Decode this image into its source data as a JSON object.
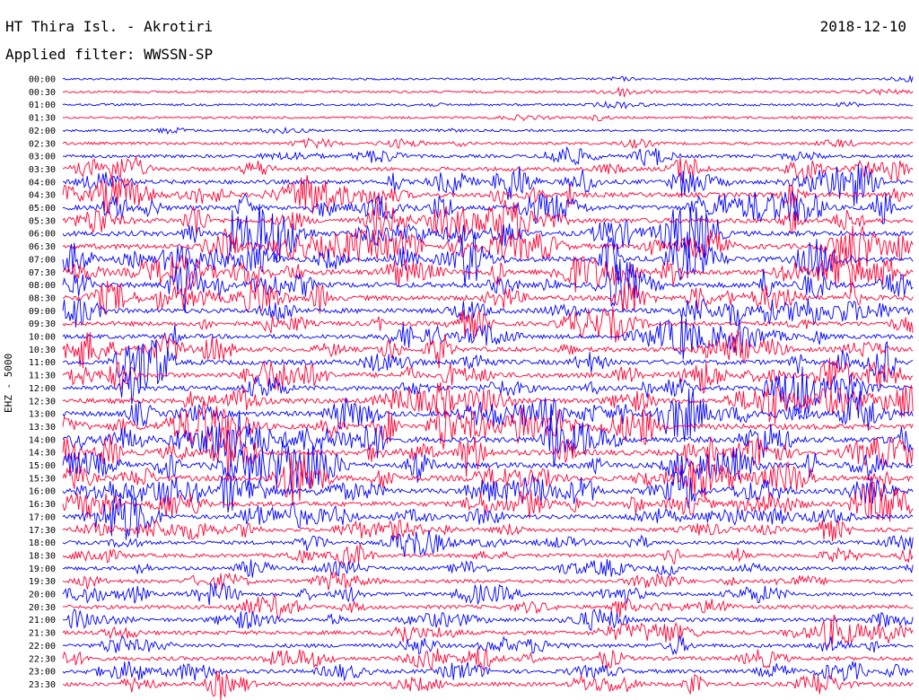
{
  "header": {
    "station": "HT Thira Isl. - Akrotiri",
    "date": "2018-12-10",
    "filter": "Applied filter: WWSSN-SP",
    "channel": "EHZ - 5000"
  },
  "chart_data": {
    "type": "line",
    "title": "HT Thira Isl. - Akrotiri",
    "ylabel": "EHZ - 5000",
    "colors": [
      "#0000ff",
      "#ff0033"
    ],
    "rows": [
      {
        "label": "00:00",
        "activity": 0.8
      },
      {
        "label": "00:30",
        "activity": 1.0
      },
      {
        "label": "01:00",
        "activity": 1.0
      },
      {
        "label": "01:30",
        "activity": 0.9
      },
      {
        "label": "02:00",
        "activity": 1.0
      },
      {
        "label": "02:30",
        "activity": 1.6
      },
      {
        "label": "03:00",
        "activity": 2.4
      },
      {
        "label": "03:30",
        "activity": 3.5
      },
      {
        "label": "04:00",
        "activity": 4.2
      },
      {
        "label": "04:30",
        "activity": 4.8
      },
      {
        "label": "05:00",
        "activity": 5.0
      },
      {
        "label": "05:30",
        "activity": 5.2
      },
      {
        "label": "06:00",
        "activity": 5.4
      },
      {
        "label": "06:30",
        "activity": 5.5
      },
      {
        "label": "07:00",
        "activity": 5.6
      },
      {
        "label": "07:30",
        "activity": 5.6
      },
      {
        "label": "08:00",
        "activity": 5.5
      },
      {
        "label": "08:30",
        "activity": 5.2
      },
      {
        "label": "09:00",
        "activity": 4.8
      },
      {
        "label": "09:30",
        "activity": 4.4
      },
      {
        "label": "10:00",
        "activity": 4.2
      },
      {
        "label": "10:30",
        "activity": 4.6
      },
      {
        "label": "11:00",
        "activity": 5.0
      },
      {
        "label": "11:30",
        "activity": 5.2
      },
      {
        "label": "12:00",
        "activity": 5.0
      },
      {
        "label": "12:30",
        "activity": 5.2
      },
      {
        "label": "13:00",
        "activity": 5.6
      },
      {
        "label": "13:30",
        "activity": 5.8
      },
      {
        "label": "14:00",
        "activity": 6.0
      },
      {
        "label": "14:30",
        "activity": 6.0
      },
      {
        "label": "15:00",
        "activity": 6.0
      },
      {
        "label": "15:30",
        "activity": 5.8
      },
      {
        "label": "16:00",
        "activity": 5.4
      },
      {
        "label": "16:30",
        "activity": 4.8
      },
      {
        "label": "17:00",
        "activity": 4.2
      },
      {
        "label": "17:30",
        "activity": 3.6
      },
      {
        "label": "18:00",
        "activity": 3.2
      },
      {
        "label": "18:30",
        "activity": 3.0
      },
      {
        "label": "19:00",
        "activity": 3.0
      },
      {
        "label": "19:30",
        "activity": 3.1
      },
      {
        "label": "20:00",
        "activity": 3.2
      },
      {
        "label": "20:30",
        "activity": 3.3
      },
      {
        "label": "21:00",
        "activity": 3.4
      },
      {
        "label": "21:30",
        "activity": 3.4
      },
      {
        "label": "22:00",
        "activity": 3.4
      },
      {
        "label": "22:30",
        "activity": 3.4
      },
      {
        "label": "23:00",
        "activity": 3.5
      },
      {
        "label": "23:30",
        "activity": 3.6
      }
    ]
  }
}
